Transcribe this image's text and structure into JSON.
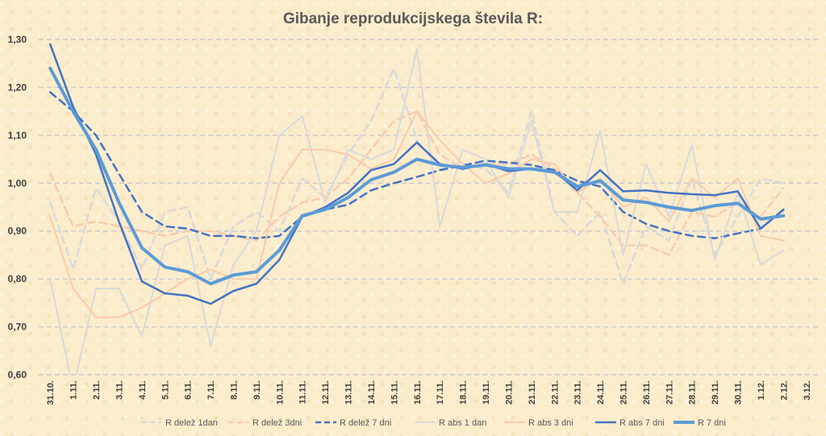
{
  "chart_data": {
    "type": "line",
    "title": "Gibanje reprodukcijskega števila R:",
    "xlabel": "",
    "ylabel": "",
    "ylim": [
      0.6,
      1.3
    ],
    "yticks": [
      "0,60",
      "0,70",
      "0,80",
      "0,90",
      "1,00",
      "1,10",
      "1,20",
      "1,30"
    ],
    "grid": true,
    "legend_position": "bottom",
    "categories": [
      "31.10.",
      "1.11.",
      "2.11.",
      "3.11.",
      "4.11.",
      "5.11.",
      "6.11.",
      "7.11.",
      "8.11.",
      "9.11.",
      "10.11.",
      "11.11.",
      "12.11.",
      "13.11.",
      "14.11.",
      "15.11.",
      "16.11.",
      "17.11.",
      "18.11.",
      "19.11.",
      "20.11.",
      "21.11.",
      "22.11.",
      "23.11.",
      "24.11.",
      "25.11.",
      "26.11.",
      "27.11.",
      "28.11.",
      "29.11.",
      "30.11.",
      "1.12.",
      "2.12.",
      "3.12."
    ],
    "series": [
      {
        "name": "R delež 1dan",
        "color": "#d9d9d9",
        "dash": true,
        "width": 2.5,
        "values": [
          0.96,
          0.82,
          0.99,
          0.92,
          0.82,
          0.94,
          0.95,
          0.8,
          0.91,
          0.94,
          0.9,
          1.01,
          0.97,
          1.06,
          1.13,
          1.24,
          1.09,
          1.03,
          1.04,
          1.03,
          0.98,
          1.15,
          0.94,
          0.89,
          0.94,
          0.79,
          0.91,
          0.88,
          1.01,
          0.85,
          0.93,
          1.01,
          1.0,
          null
        ]
      },
      {
        "name": "R delež 3dni",
        "color": "#f8cbad",
        "dash": true,
        "width": 2.5,
        "values": [
          1.02,
          0.91,
          0.92,
          0.91,
          0.9,
          0.89,
          0.9,
          0.9,
          0.89,
          0.88,
          0.93,
          0.96,
          0.97,
          1.01,
          1.07,
          1.13,
          1.15,
          1.06,
          1.03,
          1.04,
          1.04,
          1.06,
          1.03,
          0.98,
          0.93,
          0.87,
          0.87,
          0.85,
          0.94,
          0.93,
          0.96,
          0.93,
          0.99,
          null
        ]
      },
      {
        "name": "R delež 7 dni",
        "color": "#4472c4",
        "dash": true,
        "width": 2.5,
        "values": [
          1.19,
          1.15,
          1.1,
          1.02,
          0.94,
          0.91,
          0.905,
          0.89,
          0.89,
          0.885,
          0.89,
          0.93,
          0.945,
          0.955,
          0.985,
          1.0,
          1.013,
          1.027,
          1.037,
          1.047,
          1.043,
          1.038,
          1.027,
          1.005,
          0.993,
          0.94,
          0.915,
          0.9,
          0.89,
          0.885,
          0.895,
          0.905,
          0.945,
          null
        ]
      },
      {
        "name": "R abs 1 dan",
        "color": "#d9d9d9",
        "dash": false,
        "width": 2,
        "values": [
          0.8,
          0.57,
          0.78,
          0.78,
          0.68,
          0.87,
          0.89,
          0.66,
          0.83,
          0.9,
          1.1,
          1.14,
          0.96,
          1.07,
          1.05,
          1.07,
          1.28,
          0.91,
          1.07,
          1.05,
          0.97,
          1.13,
          0.94,
          0.94,
          1.11,
          0.85,
          1.04,
          0.93,
          1.08,
          0.84,
          0.98,
          0.83,
          0.86,
          null
        ]
      },
      {
        "name": "R abs 3 dni",
        "color": "#f8cbad",
        "dash": false,
        "width": 2,
        "values": [
          0.93,
          0.78,
          0.72,
          0.72,
          0.74,
          0.77,
          0.8,
          0.82,
          0.8,
          0.8,
          1.0,
          1.07,
          1.07,
          1.06,
          1.03,
          1.05,
          1.15,
          1.09,
          1.04,
          1.0,
          1.02,
          1.05,
          1.04,
          0.98,
          1.01,
          0.95,
          0.97,
          0.92,
          1.01,
          0.97,
          1.01,
          0.89,
          0.88,
          null
        ]
      },
      {
        "name": "R abs 7 dni",
        "color": "#4472c4",
        "dash": false,
        "width": 2.5,
        "values": [
          1.29,
          1.16,
          1.06,
          0.92,
          0.795,
          0.77,
          0.765,
          0.748,
          0.775,
          0.79,
          0.84,
          0.93,
          0.95,
          0.98,
          1.027,
          1.04,
          1.085,
          1.04,
          1.03,
          1.04,
          1.025,
          1.03,
          1.025,
          0.985,
          1.027,
          0.983,
          0.985,
          0.98,
          0.977,
          0.975,
          0.983,
          0.905,
          0.945,
          null
        ]
      },
      {
        "name": "R 7 dni",
        "color": "#5b9bd5",
        "dash": false,
        "width": 4,
        "values": [
          1.24,
          1.15,
          1.07,
          0.96,
          0.865,
          0.825,
          0.815,
          0.79,
          0.808,
          0.815,
          0.86,
          0.932,
          0.945,
          0.97,
          1.007,
          1.023,
          1.05,
          1.038,
          1.033,
          1.038,
          1.03,
          1.03,
          1.023,
          0.993,
          1.005,
          0.965,
          0.96,
          0.95,
          0.943,
          0.953,
          0.958,
          0.925,
          0.932,
          null
        ]
      }
    ]
  }
}
